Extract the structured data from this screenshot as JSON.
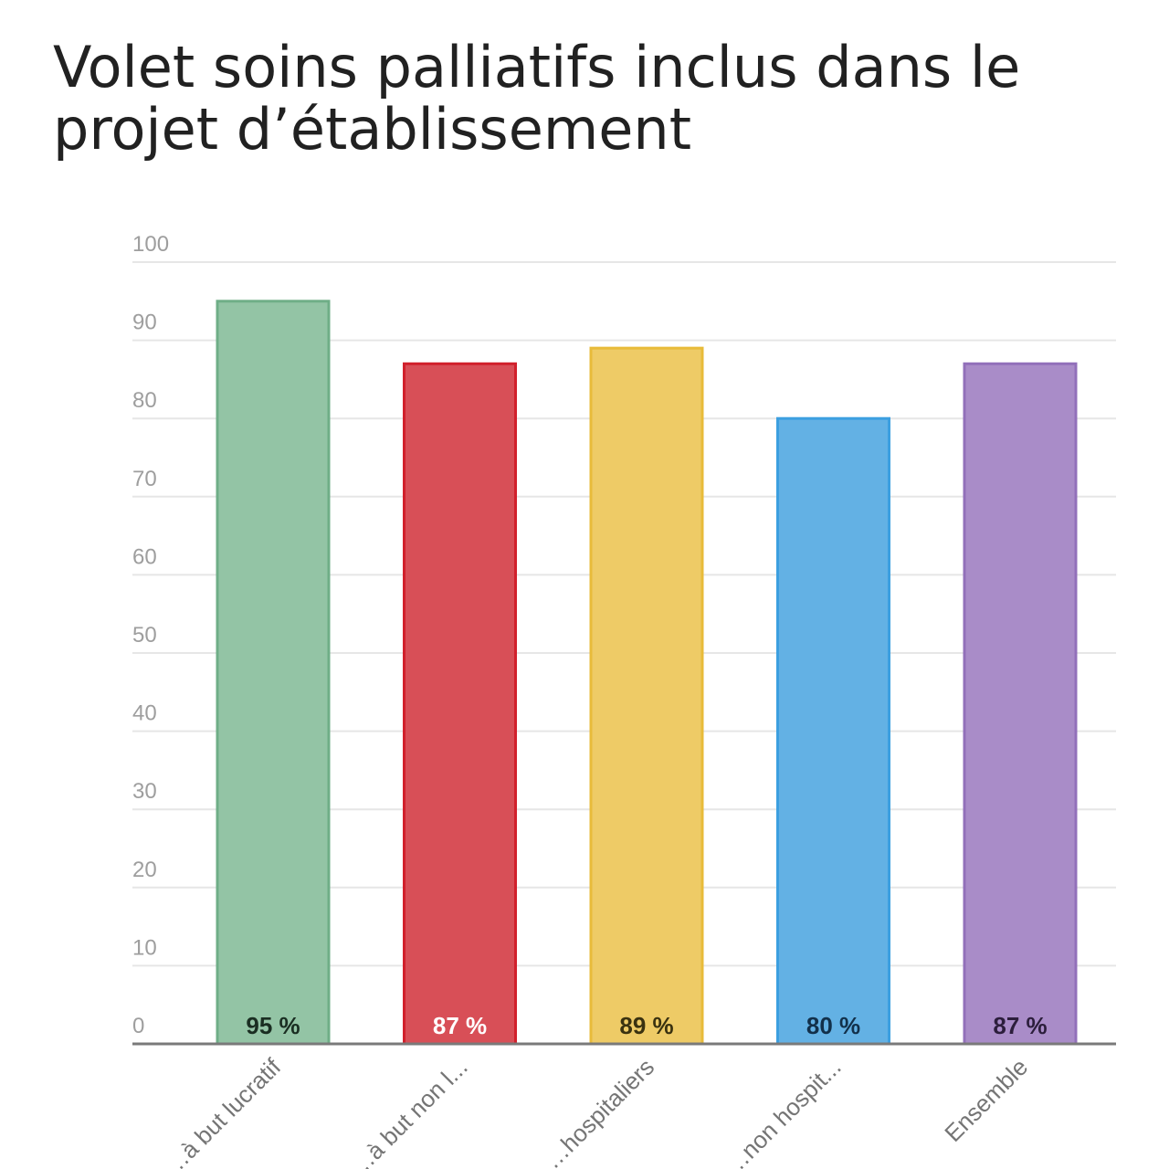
{
  "chart_data": {
    "type": "bar",
    "title": "Volet soins palliatifs inclus dans le projet d’établissement",
    "xlabel": "",
    "ylabel": "",
    "ylim": [
      0,
      100
    ],
    "yticks": [
      0,
      10,
      20,
      30,
      40,
      50,
      60,
      70,
      80,
      90,
      100
    ],
    "grid": true,
    "legend": "none",
    "categories": [
      "…à but lucratif",
      "…à but non l...",
      "…hospitaliers",
      "…non hospit...",
      "Ensemble"
    ],
    "values": [
      95,
      87,
      89,
      80,
      87
    ],
    "data_labels": [
      "95 %",
      "87 %",
      "89 %",
      "80 %",
      "87 %"
    ],
    "bar_colors": [
      "#93c4a5",
      "#d84f57",
      "#eecb66",
      "#63b1e4",
      "#a98cc8"
    ],
    "bar_border_colors": [
      "#6fae87",
      "#d1202c",
      "#e8bb3a",
      "#3c9fe0",
      "#9270ba"
    ],
    "data_label_colors": [
      "#1a2e22",
      "#ffffff",
      "#3a3210",
      "#12304a",
      "#2c1e3c"
    ]
  }
}
